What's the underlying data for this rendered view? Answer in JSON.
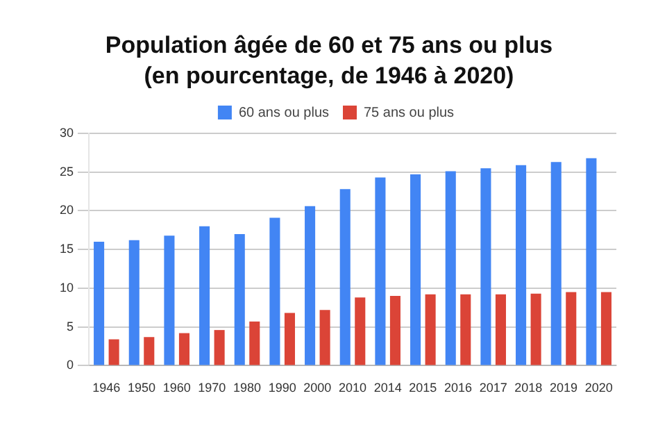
{
  "chart_data": {
    "type": "bar",
    "title": "Population âgée de 60 et 75 ans ou plus\n(en pourcentage, de 1946 à 2020)",
    "categories": [
      "1946",
      "1950",
      "1960",
      "1970",
      "1980",
      "1990",
      "2000",
      "2010",
      "2014",
      "2015",
      "2016",
      "2017",
      "2018",
      "2019",
      "2020"
    ],
    "series": [
      {
        "name": "60 ans ou plus",
        "color": "#4285f4",
        "values": [
          16.0,
          16.2,
          16.8,
          18.0,
          17.0,
          19.1,
          20.6,
          22.8,
          24.3,
          24.7,
          25.1,
          25.5,
          25.9,
          26.3,
          26.8
        ]
      },
      {
        "name": "75 ans ou plus",
        "color": "#db4437",
        "values": [
          3.4,
          3.7,
          4.2,
          4.6,
          5.7,
          6.8,
          7.2,
          8.8,
          9.0,
          9.2,
          9.2,
          9.2,
          9.3,
          9.5,
          9.5
        ]
      }
    ],
    "ylim": [
      0,
      30
    ],
    "yticks": [
      0,
      5,
      10,
      15,
      20,
      25,
      30
    ],
    "grid": "y",
    "legend": "top"
  }
}
